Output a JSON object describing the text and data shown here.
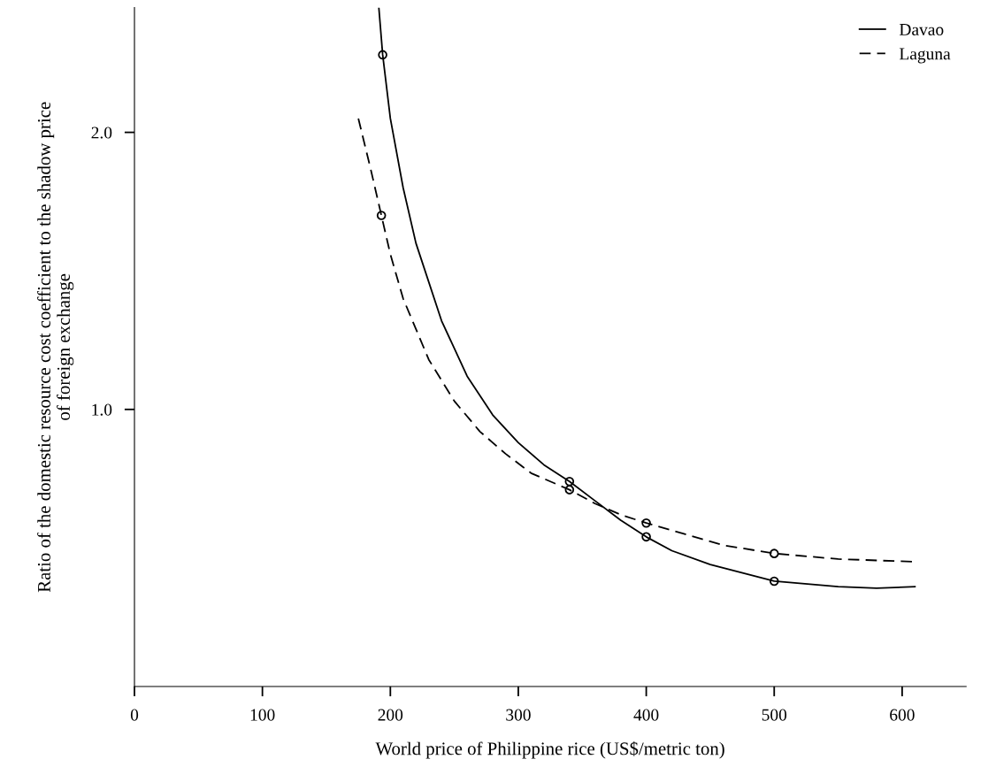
{
  "chart_data": {
    "type": "line",
    "xlabel": "World price of Philippine rice (US$/metric ton)",
    "ylabel": "Ratio of the domestic resource cost coefficient to the shadow price\nof foreign exchange",
    "series": [
      {
        "name": "Davao",
        "color": "#000000",
        "line_style": "solid",
        "x": [
          191,
          194,
          200,
          210,
          220,
          240,
          260,
          280,
          300,
          320,
          340,
          360,
          380,
          400,
          420,
          450,
          500,
          550,
          580,
          610
        ],
        "values": [
          2.45,
          2.28,
          2.05,
          1.8,
          1.6,
          1.32,
          1.12,
          0.98,
          0.88,
          0.8,
          0.74,
          0.67,
          0.6,
          0.54,
          0.49,
          0.44,
          0.38,
          0.36,
          0.355,
          0.36
        ]
      },
      {
        "name": "Laguna",
        "color": "#000000",
        "line_style": "dashed",
        "x": [
          175,
          185,
          193,
          200,
          210,
          230,
          250,
          270,
          290,
          310,
          340,
          360,
          380,
          400,
          430,
          460,
          500,
          550,
          610
        ],
        "values": [
          2.05,
          1.86,
          1.7,
          1.56,
          1.4,
          1.18,
          1.03,
          0.92,
          0.84,
          0.77,
          0.71,
          0.66,
          0.62,
          0.59,
          0.55,
          0.51,
          0.48,
          0.46,
          0.45
        ]
      },
      {
        "type": "scatter",
        "color": "#000000",
        "marker": "circle",
        "x": [
          194,
          340,
          400,
          500
        ],
        "values": [
          2.28,
          0.74,
          0.54,
          0.38
        ]
      },
      {
        "type": "scatter",
        "color": "#000000",
        "marker": "circle",
        "x": [
          193,
          340,
          400,
          500
        ],
        "values": [
          1.7,
          0.71,
          0.59,
          0.48
        ]
      }
    ],
    "xlim": [
      0,
      650
    ],
    "xticks": [
      0,
      100,
      200,
      300,
      400,
      500,
      600
    ],
    "ylim": [
      0,
      2.45
    ],
    "yticks": [
      {
        "value": 1,
        "label": "1.0"
      },
      {
        "value": 2,
        "label": "2.0"
      }
    ],
    "legend": "top right",
    "grid": false
  }
}
